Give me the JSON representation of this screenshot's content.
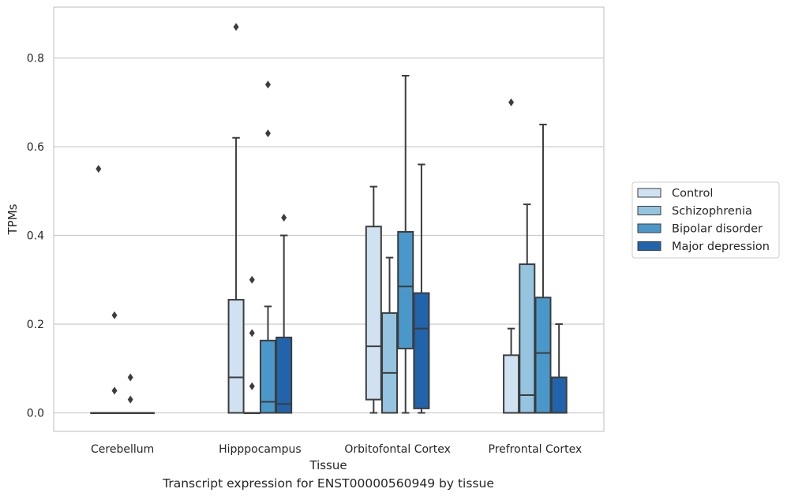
{
  "caption": "Transcript expression for ENST00000560949 by tissue",
  "chart_data": {
    "type": "box",
    "xlabel": "Tissue",
    "ylabel": "TPMs",
    "ylim": [
      -0.04,
      0.92
    ],
    "yticks": [
      "0.0",
      "0.2",
      "0.4",
      "0.6",
      "0.8"
    ],
    "grid": "horizontal",
    "legend_position": "right",
    "categories": [
      "Cerebellum",
      "Hipppocampus",
      "Orbitofontal Cortex",
      "Prefrontal Cortex"
    ],
    "series": [
      {
        "name": "Control",
        "color": "#d0e1f2",
        "boxes": [
          {
            "min": 0,
            "q1": 0,
            "median": 0,
            "q3": 0,
            "max": 0,
            "outliers": [
              0.55
            ]
          },
          {
            "min": 0,
            "q1": 0,
            "median": 0.08,
            "q3": 0.255,
            "max": 0.62,
            "outliers": [
              0.87
            ]
          },
          {
            "min": 0,
            "q1": 0.03,
            "median": 0.15,
            "q3": 0.42,
            "max": 0.51,
            "outliers": []
          },
          {
            "min": 0,
            "q1": 0,
            "median": 0,
            "q3": 0.13,
            "max": 0.19,
            "outliers": [
              0.7
            ]
          }
        ]
      },
      {
        "name": "Schizophrenia",
        "color": "#94c4df",
        "boxes": [
          {
            "min": 0,
            "q1": 0,
            "median": 0,
            "q3": 0,
            "max": 0,
            "outliers": [
              0.22,
              0.05
            ]
          },
          {
            "min": 0,
            "q1": 0,
            "median": 0,
            "q3": 0,
            "max": 0,
            "outliers": [
              0.3,
              0.18,
              0.06
            ]
          },
          {
            "min": 0,
            "q1": 0,
            "median": 0.09,
            "q3": 0.225,
            "max": 0.35,
            "outliers": []
          },
          {
            "min": 0,
            "q1": 0,
            "median": 0.04,
            "q3": 0.335,
            "max": 0.47,
            "outliers": []
          }
        ]
      },
      {
        "name": "Bipolar disorder",
        "color": "#4a98c9",
        "boxes": [
          {
            "min": 0,
            "q1": 0,
            "median": 0,
            "q3": 0,
            "max": 0,
            "outliers": [
              0.08,
              0.03
            ]
          },
          {
            "min": 0,
            "q1": 0,
            "median": 0.025,
            "q3": 0.163,
            "max": 0.24,
            "outliers": [
              0.74,
              0.63
            ]
          },
          {
            "min": 0,
            "q1": 0.145,
            "median": 0.285,
            "q3": 0.408,
            "max": 0.76,
            "outliers": []
          },
          {
            "min": 0,
            "q1": 0,
            "median": 0.135,
            "q3": 0.26,
            "max": 0.65,
            "outliers": []
          }
        ]
      },
      {
        "name": "Major depression",
        "color": "#2164ab",
        "boxes": [
          {
            "min": 0,
            "q1": 0,
            "median": 0,
            "q3": 0,
            "max": 0,
            "outliers": []
          },
          {
            "min": 0,
            "q1": 0,
            "median": 0.02,
            "q3": 0.17,
            "max": 0.4,
            "outliers": [
              0.44
            ]
          },
          {
            "min": 0,
            "q1": 0.01,
            "median": 0.19,
            "q3": 0.27,
            "max": 0.56,
            "outliers": []
          },
          {
            "min": 0,
            "q1": 0,
            "median": 0,
            "q3": 0.08,
            "max": 0.2,
            "outliers": []
          }
        ]
      }
    ]
  }
}
